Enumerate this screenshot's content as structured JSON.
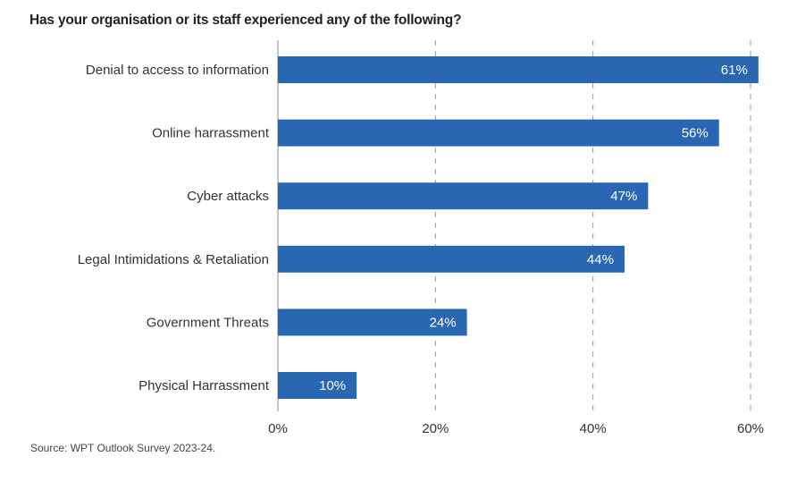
{
  "chart_data": {
    "type": "bar",
    "orientation": "horizontal",
    "title": "Has your organisation or its staff experienced any of the following?",
    "categories": [
      "Denial to access to information",
      "Online harrassment",
      "Cyber attacks",
      "Legal Intimidations & Retaliation",
      "Government Threats",
      "Physical Harrassment"
    ],
    "values": [
      61,
      56,
      47,
      44,
      24,
      10
    ],
    "value_labels": [
      "61%",
      "56%",
      "47%",
      "44%",
      "24%",
      "10%"
    ],
    "xlim": [
      0,
      60
    ],
    "xticks": [
      0,
      20,
      40,
      60
    ],
    "xtick_labels": [
      "0%",
      "20%",
      "40%",
      "60%"
    ],
    "xlabel": "",
    "ylabel": "",
    "grid": "vertical dashed",
    "bar_color": "#2a67b3",
    "source": "Source: WPT Outlook Survey 2023-24."
  }
}
